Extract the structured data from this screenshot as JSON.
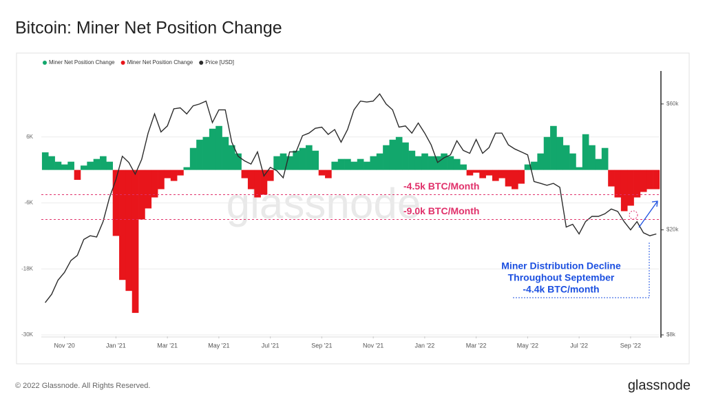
{
  "title": "Bitcoin: Miner Net Position Change",
  "footer": "© 2022 Glassnode. All Rights Reserved.",
  "logo": "glassnode",
  "chart_data": {
    "type": "bar",
    "watermark": "glassnode",
    "x": [
      -0.75,
      -0.5,
      -0.25,
      0,
      0.25,
      0.5,
      0.75,
      1,
      1.25,
      1.5,
      1.75,
      2,
      2.25,
      2.5,
      2.75,
      3,
      3.25,
      3.5,
      3.75,
      4,
      4.25,
      4.5,
      4.75,
      5,
      5.25,
      5.5,
      5.75,
      6,
      6.25,
      6.5,
      6.75,
      7,
      7.25,
      7.5,
      7.75,
      8,
      8.25,
      8.5,
      8.75,
      9,
      9.25,
      9.5,
      9.75,
      10,
      10.25,
      10.5,
      10.75,
      11,
      11.25,
      11.5,
      11.75,
      12,
      12.25,
      12.5,
      12.75,
      13,
      13.25,
      13.5,
      13.75,
      14,
      14.25,
      14.5,
      14.75,
      15,
      15.25,
      15.5,
      15.75,
      16,
      16.25,
      16.5,
      16.75,
      17,
      17.25,
      17.5,
      17.75,
      18,
      18.25,
      18.5,
      18.75,
      19,
      19.25,
      19.5,
      19.75,
      20,
      20.25,
      20.5,
      20.75,
      21,
      21.25,
      21.5,
      21.75,
      22,
      22.25,
      22.5,
      22.75,
      23
    ],
    "xlim": [
      -0.9,
      23.1
    ],
    "xticks": [
      {
        "value": 0,
        "label": "Nov '20"
      },
      {
        "value": 2,
        "label": "Jan '21"
      },
      {
        "value": 4,
        "label": "Mar '21"
      },
      {
        "value": 6,
        "label": "May '21"
      },
      {
        "value": 8,
        "label": "Jul '21"
      },
      {
        "value": 10,
        "label": "Sep '21"
      },
      {
        "value": 12,
        "label": "Nov '21"
      },
      {
        "value": 14,
        "label": "Jan '22"
      },
      {
        "value": 16,
        "label": "Mar '22"
      },
      {
        "value": 18,
        "label": "May '22"
      },
      {
        "value": 20,
        "label": "Jul '22"
      },
      {
        "value": 22,
        "label": "Sep '22"
      }
    ],
    "ylim": [
      -30000,
      18000
    ],
    "yticks": [
      {
        "value": 6000,
        "label": "6K"
      },
      {
        "value": -6000,
        "label": "-6K"
      },
      {
        "value": -18000,
        "label": "-18K"
      },
      {
        "value": -30000,
        "label": "-30K"
      }
    ],
    "y2lim": [
      8000,
      80000
    ],
    "y2log": true,
    "y2ticks": [
      {
        "value": 60000,
        "label": "$60k"
      },
      {
        "value": 20000,
        "label": "$20k"
      },
      {
        "value": 8000,
        "label": "$8k"
      }
    ],
    "grid": true,
    "series": [
      {
        "name": "Miner Net Position Change",
        "type": "bar",
        "color": "#12a76c",
        "negative_color": "#e8151b",
        "values": [
          3200,
          2500,
          1500,
          1000,
          1500,
          -1800,
          800,
          1500,
          2000,
          2500,
          1500,
          -12000,
          -20000,
          -22000,
          -26000,
          -9000,
          -7000,
          -5000,
          -3500,
          -1500,
          -2000,
          -1000,
          500,
          4000,
          5500,
          6000,
          7500,
          8000,
          6000,
          4500,
          3000,
          -1500,
          -3500,
          -5000,
          -4500,
          -2000,
          2500,
          3000,
          2500,
          3500,
          4000,
          4500,
          3500,
          -1000,
          -1500,
          1500,
          2000,
          2000,
          1500,
          2000,
          1500,
          2500,
          3000,
          4500,
          5500,
          6000,
          5000,
          3500,
          2500,
          3000,
          2500,
          2500,
          3000,
          2500,
          2000,
          1000,
          -1000,
          -500,
          -1500,
          -1000,
          -2000,
          -1500,
          -3000,
          -3500,
          -2500,
          1000,
          1500,
          3000,
          6000,
          8000,
          6000,
          4500,
          3000,
          500,
          6500,
          4500,
          2000,
          4000,
          -3000,
          -5000,
          -7500,
          -6500,
          -5000,
          -4000,
          -3500,
          -3500
        ]
      },
      {
        "name": "Price [USD]",
        "type": "line",
        "axis": "y2",
        "color": "#2b2b2b",
        "values": [
          10600,
          11400,
          12900,
          13800,
          15300,
          16000,
          18400,
          19000,
          18800,
          21500,
          26500,
          31000,
          38000,
          36000,
          32500,
          37000,
          46500,
          55000,
          47000,
          49500,
          57500,
          58000,
          55000,
          59000,
          60000,
          61500,
          51000,
          57000,
          57000,
          43000,
          38000,
          36500,
          35500,
          39500,
          32000,
          34500,
          33500,
          31500,
          39500,
          39500,
          45500,
          46500,
          48500,
          49000,
          46000,
          48000,
          43000,
          48000,
          57000,
          61500,
          61000,
          61500,
          65500,
          60000,
          57000,
          49000,
          49500,
          46500,
          50800,
          46500,
          42000,
          36000,
          37500,
          38500,
          43500,
          40000,
          39000,
          44000,
          39000,
          41000,
          46500,
          46500,
          42000,
          40500,
          39500,
          38500,
          30500,
          30000,
          29500,
          30000,
          29000,
          20500,
          21000,
          19300,
          21500,
          22500,
          22500,
          23000,
          24000,
          23500,
          21500,
          20000,
          21500,
          19500,
          19000,
          19300
        ]
      }
    ],
    "reference_lines": [
      {
        "value": -4500,
        "label": "-4.5k BTC/Month",
        "color": "#e0306a"
      },
      {
        "value": -9000,
        "label": "-9.0k BTC/Month",
        "color": "#e0306a"
      }
    ],
    "annotation": {
      "lines": [
        "Miner Distribution Decline",
        "Throughout September",
        "-4.4k BTC/month"
      ],
      "color": "#1b4fe0"
    }
  }
}
